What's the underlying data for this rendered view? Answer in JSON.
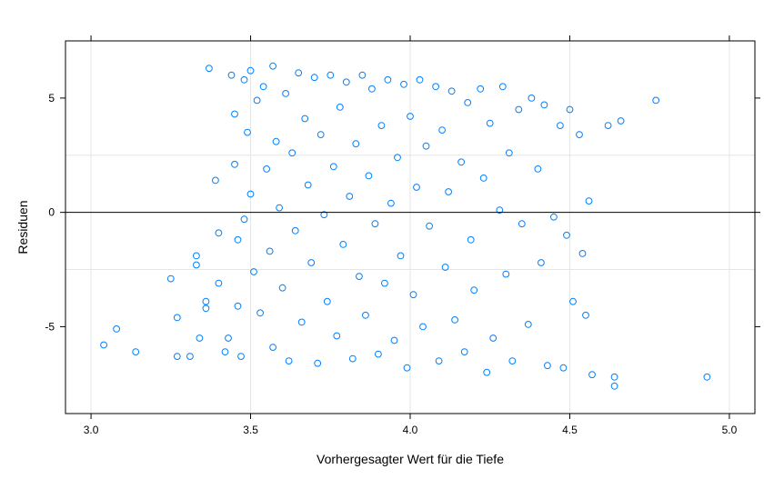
{
  "chart_data": {
    "type": "scatter",
    "title": "",
    "xlabel": "Vorhergesagter Wert für die Tiefe",
    "ylabel": "Residuen",
    "xlim": [
      2.92,
      5.08
    ],
    "ylim": [
      -8.8,
      7.5
    ],
    "xticks": [
      3.0,
      3.5,
      4.0,
      4.5,
      5.0
    ],
    "xtick_labels": [
      "3.0",
      "3.5",
      "4.0",
      "4.5",
      "5.0"
    ],
    "yticks": [
      -5,
      0,
      5
    ],
    "ytick_labels": [
      "-5",
      "0",
      "5"
    ],
    "grid": true,
    "reference_line_y": 0,
    "point_color": "#0080ff",
    "series": [
      {
        "values": [
          [
            3.04,
            -5.8
          ],
          [
            3.08,
            -5.1
          ],
          [
            3.14,
            -6.1
          ],
          [
            3.25,
            -2.9
          ],
          [
            3.27,
            -4.6
          ],
          [
            3.27,
            -6.3
          ],
          [
            3.31,
            -6.3
          ],
          [
            3.33,
            -1.9
          ],
          [
            3.33,
            -2.3
          ],
          [
            3.34,
            -5.5
          ],
          [
            3.36,
            -3.9
          ],
          [
            3.36,
            -4.2
          ],
          [
            3.37,
            6.3
          ],
          [
            3.39,
            1.4
          ],
          [
            3.4,
            -0.9
          ],
          [
            3.4,
            -3.1
          ],
          [
            3.42,
            -6.1
          ],
          [
            3.43,
            -5.5
          ],
          [
            3.44,
            6.0
          ],
          [
            3.45,
            4.3
          ],
          [
            3.45,
            2.1
          ],
          [
            3.46,
            -1.2
          ],
          [
            3.46,
            -4.1
          ],
          [
            3.47,
            -6.3
          ],
          [
            3.48,
            5.8
          ],
          [
            3.48,
            -0.3
          ],
          [
            3.49,
            3.5
          ],
          [
            3.5,
            6.2
          ],
          [
            3.5,
            0.8
          ],
          [
            3.51,
            -2.6
          ],
          [
            3.52,
            4.9
          ],
          [
            3.53,
            -4.4
          ],
          [
            3.54,
            5.5
          ],
          [
            3.55,
            1.9
          ],
          [
            3.56,
            -1.7
          ],
          [
            3.57,
            6.4
          ],
          [
            3.57,
            -5.9
          ],
          [
            3.58,
            3.1
          ],
          [
            3.59,
            0.2
          ],
          [
            3.6,
            -3.3
          ],
          [
            3.61,
            5.2
          ],
          [
            3.62,
            -6.5
          ],
          [
            3.63,
            2.6
          ],
          [
            3.64,
            -0.8
          ],
          [
            3.65,
            6.1
          ],
          [
            3.66,
            -4.8
          ],
          [
            3.67,
            4.1
          ],
          [
            3.68,
            1.2
          ],
          [
            3.69,
            -2.2
          ],
          [
            3.7,
            5.9
          ],
          [
            3.71,
            -6.6
          ],
          [
            3.72,
            3.4
          ],
          [
            3.73,
            -0.1
          ],
          [
            3.74,
            -3.9
          ],
          [
            3.75,
            6.0
          ],
          [
            3.76,
            2.0
          ],
          [
            3.77,
            -5.4
          ],
          [
            3.78,
            4.6
          ],
          [
            3.79,
            -1.4
          ],
          [
            3.8,
            5.7
          ],
          [
            3.81,
            0.7
          ],
          [
            3.82,
            -6.4
          ],
          [
            3.83,
            3.0
          ],
          [
            3.84,
            -2.8
          ],
          [
            3.85,
            6.0
          ],
          [
            3.86,
            -4.5
          ],
          [
            3.87,
            1.6
          ],
          [
            3.88,
            5.4
          ],
          [
            3.89,
            -0.5
          ],
          [
            3.9,
            -6.2
          ],
          [
            3.91,
            3.8
          ],
          [
            3.92,
            -3.1
          ],
          [
            3.93,
            5.8
          ],
          [
            3.94,
            0.4
          ],
          [
            3.95,
            -5.6
          ],
          [
            3.96,
            2.4
          ],
          [
            3.97,
            -1.9
          ],
          [
            3.98,
            5.6
          ],
          [
            3.99,
            -6.8
          ],
          [
            4.0,
            4.2
          ],
          [
            4.01,
            -3.6
          ],
          [
            4.02,
            1.1
          ],
          [
            4.03,
            5.8
          ],
          [
            4.04,
            -5.0
          ],
          [
            4.05,
            2.9
          ],
          [
            4.06,
            -0.6
          ],
          [
            4.08,
            5.5
          ],
          [
            4.09,
            -6.5
          ],
          [
            4.1,
            3.6
          ],
          [
            4.11,
            -2.4
          ],
          [
            4.12,
            0.9
          ],
          [
            4.13,
            5.3
          ],
          [
            4.14,
            -4.7
          ],
          [
            4.16,
            2.2
          ],
          [
            4.17,
            -6.1
          ],
          [
            4.18,
            4.8
          ],
          [
            4.19,
            -1.2
          ],
          [
            4.2,
            -3.4
          ],
          [
            4.22,
            5.4
          ],
          [
            4.23,
            1.5
          ],
          [
            4.24,
            -7.0
          ],
          [
            4.25,
            3.9
          ],
          [
            4.26,
            -5.5
          ],
          [
            4.28,
            0.1
          ],
          [
            4.29,
            5.5
          ],
          [
            4.3,
            -2.7
          ],
          [
            4.31,
            2.6
          ],
          [
            4.32,
            -6.5
          ],
          [
            4.34,
            4.5
          ],
          [
            4.35,
            -0.5
          ],
          [
            4.37,
            -4.9
          ],
          [
            4.38,
            5.0
          ],
          [
            4.4,
            1.9
          ],
          [
            4.41,
            -2.2
          ],
          [
            4.42,
            4.7
          ],
          [
            4.43,
            -6.7
          ],
          [
            4.45,
            -0.2
          ],
          [
            4.47,
            3.8
          ],
          [
            4.48,
            -6.8
          ],
          [
            4.49,
            -1.0
          ],
          [
            4.5,
            4.5
          ],
          [
            4.51,
            -3.9
          ],
          [
            4.53,
            3.4
          ],
          [
            4.54,
            -1.8
          ],
          [
            4.55,
            -4.5
          ],
          [
            4.56,
            0.5
          ],
          [
            4.57,
            -7.1
          ],
          [
            4.62,
            3.8
          ],
          [
            4.64,
            -7.2
          ],
          [
            4.64,
            -7.6
          ],
          [
            4.66,
            4.0
          ],
          [
            4.77,
            4.9
          ],
          [
            4.93,
            -7.2
          ]
        ]
      }
    ]
  }
}
